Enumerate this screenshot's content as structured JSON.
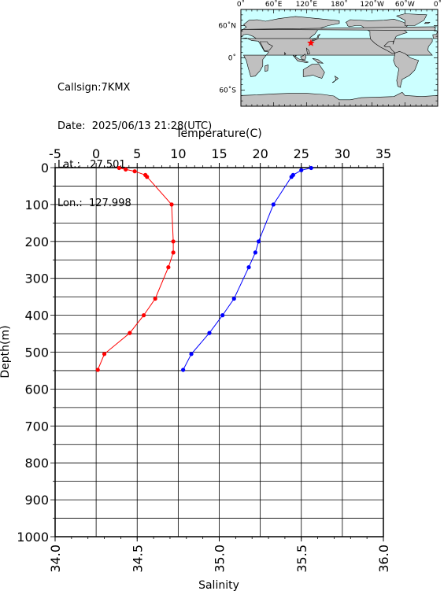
{
  "header": {
    "callsign": "Callsign:7KMX",
    "date": "Date:  2025/06/13 21:28(UTC)",
    "lat": "Lat.:   27.501",
    "lon": "Lon.:  127.998"
  },
  "map": {
    "top_labels": [
      "0˚",
      "60˚E",
      "120˚E",
      "180˚",
      "120˚W",
      "60˚W",
      "0˚"
    ],
    "left_labels": [
      "60˚N",
      "0˚",
      "60˚S"
    ],
    "marker": {
      "lat": 27.501,
      "lon": 127.998,
      "color": "#ff0000"
    },
    "colors": {
      "ocean": "#ccffff",
      "land": "#c0c0c0",
      "border": "#000000"
    }
  },
  "chart_data": {
    "type": "line",
    "xlabel_top": "Temperature(C)",
    "xlabel_bottom": "Salinity",
    "ylabel": "Depth(m)",
    "temperature_axis": {
      "range": [
        -5,
        35
      ],
      "ticks": [
        "-5",
        "0",
        "5",
        "10",
        "15",
        "20",
        "25",
        "30",
        "35"
      ]
    },
    "salinity_axis": {
      "range": [
        34.0,
        36.0
      ],
      "ticks": [
        "34.0",
        "34.5",
        "35.0",
        "35.5",
        "36.0"
      ]
    },
    "depth_axis": {
      "range": [
        0,
        1000
      ],
      "ticks": [
        "0",
        "100",
        "200",
        "300",
        "400",
        "500",
        "600",
        "700",
        "800",
        "900",
        "1000"
      ]
    },
    "grid": true,
    "series": [
      {
        "quantity": "temperature",
        "color": "#ff0000",
        "points": [
          [
            2.8,
            1
          ],
          [
            3.6,
            5
          ],
          [
            4.7,
            10
          ],
          [
            6.0,
            20
          ],
          [
            6.2,
            25
          ],
          [
            9.2,
            100
          ],
          [
            9.4,
            200
          ],
          [
            9.4,
            230
          ],
          [
            8.8,
            270
          ],
          [
            7.2,
            355
          ],
          [
            5.8,
            400
          ],
          [
            4.1,
            448
          ],
          [
            1.0,
            505
          ],
          [
            0.2,
            548
          ]
        ]
      },
      {
        "quantity": "salinity",
        "color": "#0000ff",
        "points": [
          [
            35.56,
            1
          ],
          [
            35.5,
            7
          ],
          [
            35.45,
            20
          ],
          [
            35.44,
            25
          ],
          [
            35.33,
            100
          ],
          [
            35.24,
            200
          ],
          [
            35.22,
            230
          ],
          [
            35.18,
            270
          ],
          [
            35.09,
            355
          ],
          [
            35.02,
            400
          ],
          [
            34.94,
            448
          ],
          [
            34.83,
            505
          ],
          [
            34.78,
            548
          ]
        ]
      }
    ]
  }
}
